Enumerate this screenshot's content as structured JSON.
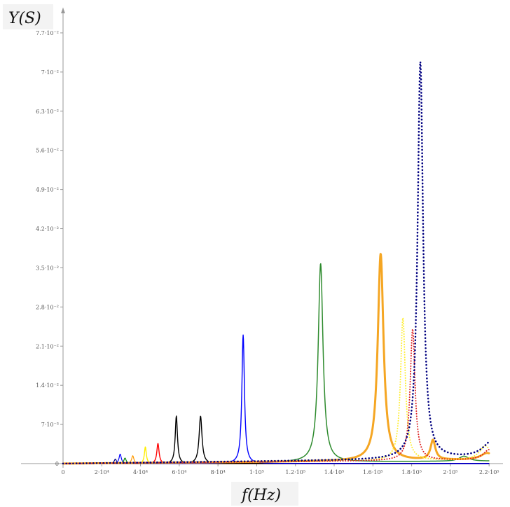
{
  "chart_data": {
    "type": "line",
    "xlabel": "f(Hz)",
    "ylabel": "Y(S)",
    "xlim": [
      0,
      225000
    ],
    "ylim": [
      0,
      0.081
    ],
    "grid": false,
    "x_ticks": [
      {
        "value": 0,
        "label": "0"
      },
      {
        "value": 20000,
        "label": "2·10⁴"
      },
      {
        "value": 40000,
        "label": "4·10⁴"
      },
      {
        "value": 60000,
        "label": "6·10⁴"
      },
      {
        "value": 80000,
        "label": "8·10⁴"
      },
      {
        "value": 100000,
        "label": "1·10⁵"
      },
      {
        "value": 120000,
        "label": "1.2·10⁵"
      },
      {
        "value": 140000,
        "label": "1.4·10⁵"
      },
      {
        "value": 160000,
        "label": "1.6·10⁵"
      },
      {
        "value": 180000,
        "label": "1.8·10⁵"
      },
      {
        "value": 200000,
        "label": "2·10⁵"
      },
      {
        "value": 220000,
        "label": "2.2·10⁵"
      }
    ],
    "y_ticks": [
      {
        "value": 0,
        "label": "0"
      },
      {
        "value": 0.007,
        "label": "7·10⁻³"
      },
      {
        "value": 0.014,
        "label": "1.4·10⁻²"
      },
      {
        "value": 0.021,
        "label": "2.1·10⁻²"
      },
      {
        "value": 0.028,
        "label": "2.8·10⁻²"
      },
      {
        "value": 0.035,
        "label": "3.5·10⁻²"
      },
      {
        "value": 0.042,
        "label": "4.2·10⁻²"
      },
      {
        "value": 0.049,
        "label": "4.9·10⁻²"
      },
      {
        "value": 0.056,
        "label": "5.6·10⁻²"
      },
      {
        "value": 0.063,
        "label": "6.3·10⁻²"
      },
      {
        "value": 0.07,
        "label": "7·10⁻²"
      },
      {
        "value": 0.077,
        "label": "7.7·10⁻²"
      }
    ],
    "series": [
      {
        "color": "#000080",
        "style": "solid",
        "width": 1.2,
        "peak_x": 27000,
        "peak_y": 0.0008,
        "width_x": 700,
        "baseline": 0
      },
      {
        "color": "#0000ff",
        "style": "solid",
        "width": 1.2,
        "peak_x": 29500,
        "peak_y": 0.0017,
        "width_x": 700,
        "baseline": 0
      },
      {
        "color": "#008000",
        "style": "solid",
        "width": 1.2,
        "peak_x": 32000,
        "peak_y": 0.001,
        "width_x": 700,
        "baseline": 0
      },
      {
        "color": "#ff9900",
        "style": "solid",
        "width": 1.2,
        "peak_x": 36000,
        "peak_y": 0.0014,
        "width_x": 700,
        "baseline": 0
      },
      {
        "color": "#ffee00",
        "style": "solid",
        "width": 1.4,
        "peak_x": 42500,
        "peak_y": 0.003,
        "width_x": 600,
        "baseline": 0
      },
      {
        "color": "#ff0000",
        "style": "solid",
        "width": 1.4,
        "peak_x": 49000,
        "peak_y": 0.0036,
        "width_x": 700,
        "baseline": 0
      },
      {
        "color": "#000000",
        "style": "solid",
        "width": 1.4,
        "peak_x": 58500,
        "peak_y": 0.0085,
        "width_x": 700,
        "baseline": 0
      },
      {
        "color": "#000000",
        "style": "solid",
        "width": 1.4,
        "peak_x": 71000,
        "peak_y": 0.0085,
        "width_x": 900,
        "baseline": 0
      },
      {
        "color": "#0000ff",
        "style": "solid",
        "width": 1.4,
        "peak_x": 93000,
        "peak_y": 0.023,
        "width_x": 800,
        "baseline": 0
      },
      {
        "color": "#2e8b2e",
        "style": "solid",
        "width": 1.5,
        "peak_x": 133000,
        "peak_y": 0.0355,
        "width_x": 1500,
        "baseline": 0.0002,
        "secondary": [
          {
            "x": 207000,
            "y": 0.0009,
            "w": 3000
          }
        ]
      },
      {
        "color": "#f5a623",
        "style": "solid",
        "width": 3,
        "peak_x": 164000,
        "peak_y": 0.037,
        "width_x": 1800,
        "baseline": 0.0003,
        "secondary": [
          {
            "x": 191000,
            "y": 0.0035,
            "w": 1500
          },
          {
            "x": 219000,
            "y": 0.0012,
            "w": 4000
          }
        ]
      },
      {
        "color": "#ffee33",
        "style": "dotted",
        "width": 2,
        "peak_x": 175500,
        "peak_y": 0.0255,
        "width_x": 1500,
        "baseline": 0.0003,
        "secondary": [
          {
            "x": 218000,
            "y": 0.0025,
            "w": 3500
          }
        ]
      },
      {
        "color": "#dd2222",
        "style": "dotted",
        "width": 2,
        "peak_x": 180500,
        "peak_y": 0.0235,
        "width_x": 1500,
        "baseline": 0.0003,
        "secondary": [
          {
            "x": 220000,
            "y": 0.0018,
            "w": 3500
          }
        ]
      },
      {
        "color": "#000080",
        "style": "dotted",
        "width": 2.6,
        "peak_x": 184500,
        "peak_y": 0.071,
        "width_x": 1700,
        "baseline": 0.0004,
        "secondary": [
          {
            "x": 222000,
            "y": 0.0032,
            "w": 6000
          }
        ]
      }
    ]
  }
}
